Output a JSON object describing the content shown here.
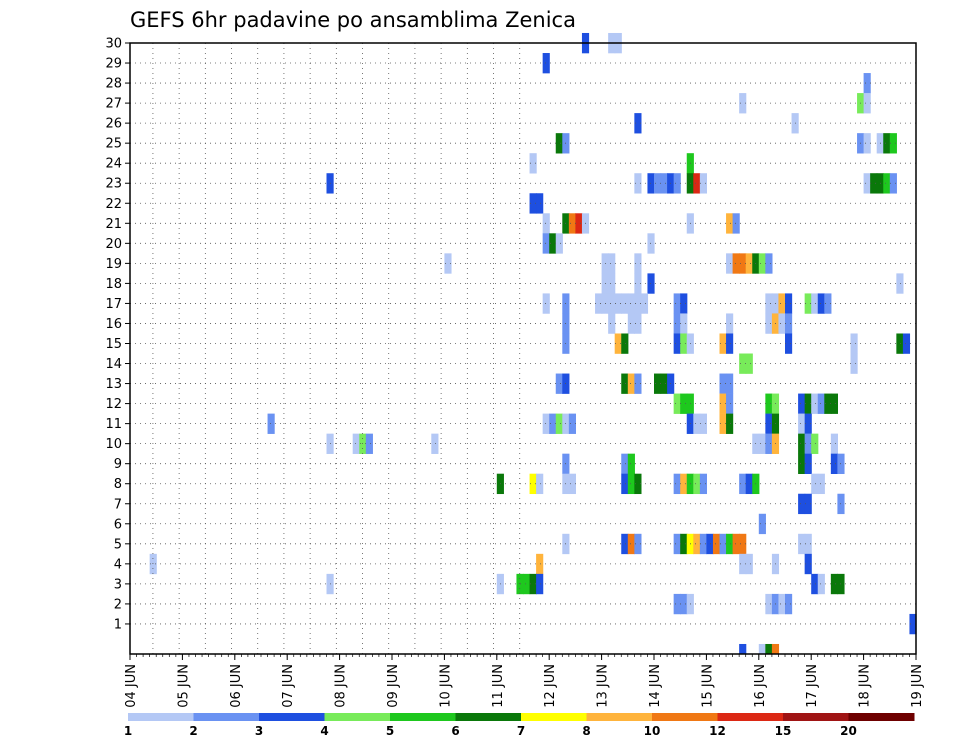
{
  "chart_data": {
    "type": "heatmap",
    "title": "GEFS 6hr padavine po ansamblima Zenica",
    "y_categories": [
      "1",
      "2",
      "3",
      "4",
      "5",
      "6",
      "7",
      "8",
      "9",
      "10",
      "11",
      "12",
      "13",
      "14",
      "15",
      "16",
      "17",
      "18",
      "19",
      "20",
      "21",
      "22",
      "23",
      "24",
      "25",
      "26",
      "27",
      "28",
      "29",
      "30"
    ],
    "x_tick_labels": [
      "04 JUN",
      "05 JUN",
      "06 JUN",
      "07 JUN",
      "08 JUN",
      "09 JUN",
      "10 JUN",
      "11 JUN",
      "12 JUN",
      "13 JUN",
      "14 JUN",
      "15 JUN",
      "16 JUN",
      "17 JUN",
      "18 JUN",
      "19 JUN"
    ],
    "x_step_unit": "6hr",
    "grid": true,
    "colorbar": {
      "placement": "bottom",
      "labels": [
        "1",
        "2",
        "3",
        "4",
        "5",
        "6",
        "7",
        "8",
        "10",
        "12",
        "15",
        "20"
      ],
      "colors": [
        "#b4c8f5",
        "#6a92f2",
        "#1e4fe0",
        "#78eb5a",
        "#1ec81e",
        "#0a780a",
        "#ffff00",
        "#ffb43c",
        "#f07814",
        "#dc2814",
        "#a01414",
        "#6e0000"
      ]
    },
    "cells_note": "each cell = [time_step_index (6hr steps from 04 JUN 00z), member (1-30), colorbar class index (0=1..1+, 11=20+)]",
    "cells": [
      [
        69,
        30,
        2
      ],
      [
        73,
        30,
        0
      ],
      [
        74,
        30,
        0
      ],
      [
        63,
        29,
        2
      ],
      [
        112,
        28,
        1
      ],
      [
        93,
        27,
        0
      ],
      [
        111,
        27,
        3
      ],
      [
        112,
        27,
        0
      ],
      [
        77,
        26,
        2
      ],
      [
        101,
        26,
        0
      ],
      [
        65,
        25,
        5
      ],
      [
        66,
        25,
        1
      ],
      [
        111,
        25,
        1
      ],
      [
        112,
        25,
        0
      ],
      [
        114,
        25,
        0
      ],
      [
        115,
        25,
        5
      ],
      [
        116,
        25,
        4
      ],
      [
        61,
        24,
        0
      ],
      [
        85,
        24,
        4
      ],
      [
        30,
        23,
        2
      ],
      [
        77,
        23,
        0
      ],
      [
        79,
        23,
        2
      ],
      [
        80,
        23,
        1
      ],
      [
        81,
        23,
        1
      ],
      [
        82,
        23,
        2
      ],
      [
        83,
        23,
        1
      ],
      [
        85,
        23,
        5
      ],
      [
        86,
        23,
        9
      ],
      [
        87,
        23,
        0
      ],
      [
        112,
        23,
        0
      ],
      [
        113,
        23,
        5
      ],
      [
        114,
        23,
        5
      ],
      [
        115,
        23,
        4
      ],
      [
        116,
        23,
        1
      ],
      [
        61,
        22,
        2
      ],
      [
        62,
        22,
        2
      ],
      [
        63,
        21,
        0
      ],
      [
        66,
        21,
        5
      ],
      [
        67,
        21,
        8
      ],
      [
        68,
        21,
        9
      ],
      [
        69,
        21,
        0
      ],
      [
        85,
        21,
        0
      ],
      [
        91,
        21,
        7
      ],
      [
        92,
        21,
        1
      ],
      [
        63,
        20,
        1
      ],
      [
        64,
        20,
        5
      ],
      [
        65,
        20,
        0
      ],
      [
        79,
        20,
        0
      ],
      [
        48,
        19,
        0
      ],
      [
        72,
        19,
        0
      ],
      [
        73,
        19,
        0
      ],
      [
        77,
        19,
        0
      ],
      [
        91,
        19,
        0
      ],
      [
        92,
        19,
        8
      ],
      [
        93,
        19,
        8
      ],
      [
        94,
        19,
        7
      ],
      [
        95,
        19,
        5
      ],
      [
        96,
        19,
        3
      ],
      [
        97,
        19,
        1
      ],
      [
        72,
        18,
        0
      ],
      [
        73,
        18,
        0
      ],
      [
        77,
        18,
        0
      ],
      [
        79,
        18,
        2
      ],
      [
        117,
        18,
        0
      ],
      [
        63,
        17,
        0
      ],
      [
        66,
        17,
        1
      ],
      [
        71,
        17,
        0
      ],
      [
        72,
        17,
        0
      ],
      [
        73,
        17,
        0
      ],
      [
        74,
        17,
        0
      ],
      [
        75,
        17,
        0
      ],
      [
        76,
        17,
        0
      ],
      [
        77,
        17,
        0
      ],
      [
        78,
        17,
        0
      ],
      [
        83,
        17,
        1
      ],
      [
        84,
        17,
        2
      ],
      [
        97,
        17,
        0
      ],
      [
        98,
        17,
        0
      ],
      [
        99,
        17,
        7
      ],
      [
        100,
        17,
        2
      ],
      [
        103,
        17,
        3
      ],
      [
        104,
        17,
        0
      ],
      [
        105,
        17,
        2
      ],
      [
        106,
        17,
        1
      ],
      [
        66,
        16,
        1
      ],
      [
        73,
        16,
        0
      ],
      [
        76,
        16,
        0
      ],
      [
        77,
        16,
        0
      ],
      [
        83,
        16,
        1
      ],
      [
        84,
        16,
        0
      ],
      [
        91,
        16,
        0
      ],
      [
        97,
        16,
        0
      ],
      [
        98,
        16,
        7
      ],
      [
        99,
        16,
        0
      ],
      [
        100,
        16,
        1
      ],
      [
        66,
        15,
        1
      ],
      [
        74,
        15,
        7
      ],
      [
        75,
        15,
        5
      ],
      [
        83,
        15,
        2
      ],
      [
        84,
        15,
        3
      ],
      [
        85,
        15,
        0
      ],
      [
        90,
        15,
        7
      ],
      [
        91,
        15,
        2
      ],
      [
        100,
        15,
        2
      ],
      [
        110,
        15,
        0
      ],
      [
        117,
        15,
        5
      ],
      [
        118,
        15,
        2
      ],
      [
        93,
        14,
        3
      ],
      [
        94,
        14,
        3
      ],
      [
        110,
        14,
        0
      ],
      [
        65,
        13,
        1
      ],
      [
        66,
        13,
        2
      ],
      [
        75,
        13,
        5
      ],
      [
        76,
        13,
        7
      ],
      [
        77,
        13,
        1
      ],
      [
        80,
        13,
        5
      ],
      [
        81,
        13,
        5
      ],
      [
        82,
        13,
        2
      ],
      [
        90,
        13,
        1
      ],
      [
        91,
        13,
        1
      ],
      [
        83,
        12,
        3
      ],
      [
        84,
        12,
        4
      ],
      [
        85,
        12,
        4
      ],
      [
        90,
        12,
        7
      ],
      [
        91,
        12,
        1
      ],
      [
        97,
        12,
        4
      ],
      [
        98,
        12,
        3
      ],
      [
        102,
        12,
        2
      ],
      [
        103,
        12,
        5
      ],
      [
        104,
        12,
        0
      ],
      [
        105,
        12,
        1
      ],
      [
        106,
        12,
        5
      ],
      [
        107,
        12,
        5
      ],
      [
        21,
        11,
        1
      ],
      [
        63,
        11,
        0
      ],
      [
        64,
        11,
        1
      ],
      [
        65,
        11,
        3
      ],
      [
        66,
        11,
        0
      ],
      [
        67,
        11,
        1
      ],
      [
        85,
        11,
        2
      ],
      [
        86,
        11,
        0
      ],
      [
        87,
        11,
        0
      ],
      [
        90,
        11,
        7
      ],
      [
        91,
        11,
        5
      ],
      [
        97,
        11,
        2
      ],
      [
        98,
        11,
        5
      ],
      [
        102,
        11,
        0
      ],
      [
        103,
        11,
        2
      ],
      [
        30,
        10,
        0
      ],
      [
        34,
        10,
        0
      ],
      [
        35,
        10,
        3
      ],
      [
        36,
        10,
        1
      ],
      [
        46,
        10,
        0
      ],
      [
        95,
        10,
        0
      ],
      [
        96,
        10,
        0
      ],
      [
        97,
        10,
        1
      ],
      [
        98,
        10,
        7
      ],
      [
        102,
        10,
        5
      ],
      [
        103,
        10,
        1
      ],
      [
        104,
        10,
        3
      ],
      [
        107,
        10,
        0
      ],
      [
        66,
        9,
        1
      ],
      [
        75,
        9,
        1
      ],
      [
        76,
        9,
        4
      ],
      [
        102,
        9,
        5
      ],
      [
        103,
        9,
        2
      ],
      [
        107,
        9,
        2
      ],
      [
        108,
        9,
        1
      ],
      [
        56,
        8,
        5
      ],
      [
        61,
        8,
        6
      ],
      [
        62,
        8,
        0
      ],
      [
        66,
        8,
        0
      ],
      [
        67,
        8,
        0
      ],
      [
        75,
        8,
        2
      ],
      [
        76,
        8,
        4
      ],
      [
        77,
        8,
        5
      ],
      [
        83,
        8,
        1
      ],
      [
        84,
        8,
        7
      ],
      [
        85,
        8,
        4
      ],
      [
        86,
        8,
        3
      ],
      [
        87,
        8,
        1
      ],
      [
        93,
        8,
        1
      ],
      [
        94,
        8,
        2
      ],
      [
        95,
        8,
        4
      ],
      [
        104,
        8,
        0
      ],
      [
        105,
        8,
        0
      ],
      [
        102,
        7,
        2
      ],
      [
        103,
        7,
        2
      ],
      [
        108,
        7,
        1
      ],
      [
        96,
        6,
        1
      ],
      [
        66,
        5,
        0
      ],
      [
        75,
        5,
        2
      ],
      [
        76,
        5,
        8
      ],
      [
        77,
        5,
        1
      ],
      [
        83,
        5,
        1
      ],
      [
        84,
        5,
        5
      ],
      [
        85,
        5,
        6
      ],
      [
        86,
        5,
        7
      ],
      [
        87,
        5,
        1
      ],
      [
        88,
        5,
        2
      ],
      [
        89,
        5,
        8
      ],
      [
        90,
        5,
        1
      ],
      [
        91,
        5,
        4
      ],
      [
        92,
        5,
        8
      ],
      [
        93,
        5,
        8
      ],
      [
        102,
        5,
        0
      ],
      [
        103,
        5,
        0
      ],
      [
        3,
        4,
        0
      ],
      [
        93,
        4,
        0
      ],
      [
        94,
        4,
        0
      ],
      [
        98,
        4,
        0
      ],
      [
        103,
        4,
        2
      ],
      [
        62,
        4,
        7
      ],
      [
        30,
        3,
        0
      ],
      [
        56,
        3,
        0
      ],
      [
        59,
        3,
        4
      ],
      [
        60,
        3,
        4
      ],
      [
        61,
        3,
        5
      ],
      [
        62,
        3,
        2
      ],
      [
        104,
        3,
        2
      ],
      [
        105,
        3,
        0
      ],
      [
        107,
        3,
        5
      ],
      [
        108,
        3,
        5
      ],
      [
        83,
        2,
        1
      ],
      [
        84,
        2,
        1
      ],
      [
        85,
        2,
        0
      ],
      [
        97,
        2,
        0
      ],
      [
        98,
        2,
        1
      ],
      [
        99,
        2,
        0
      ],
      [
        100,
        2,
        1
      ],
      [
        119,
        1,
        2
      ],
      [
        93,
        0,
        2
      ],
      [
        96,
        0,
        0
      ],
      [
        97,
        0,
        5
      ],
      [
        98,
        0,
        8
      ]
    ]
  }
}
